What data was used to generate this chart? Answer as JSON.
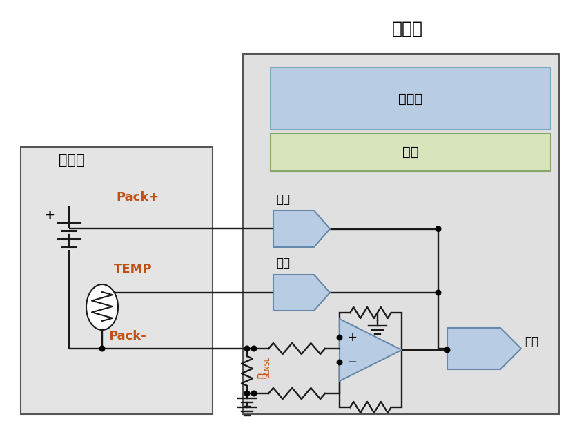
{
  "title_gauge": "电量计",
  "title_battery": "电池组",
  "label_packplus": "Pack+",
  "label_packminus": "Pack-",
  "label_temp_pin": "TEMP",
  "label_voltage": "电压",
  "label_temperature": "温度",
  "label_current": "电流",
  "label_controller": "控制器",
  "label_algorithm": "算法",
  "bg_color": "#ffffff",
  "battery_box_fc": "#e4e4e4",
  "gauge_box_fc": "#e0e0e0",
  "controller_fc": "#b8cce4",
  "algorithm_fc": "#d8e4bc",
  "sensor_fc": "#b8cce4",
  "line_color": "#1a1a1a",
  "dot_color": "#000000",
  "label_color_orange": "#c05010",
  "text_color": "#000000",
  "edge_color": "#555555"
}
